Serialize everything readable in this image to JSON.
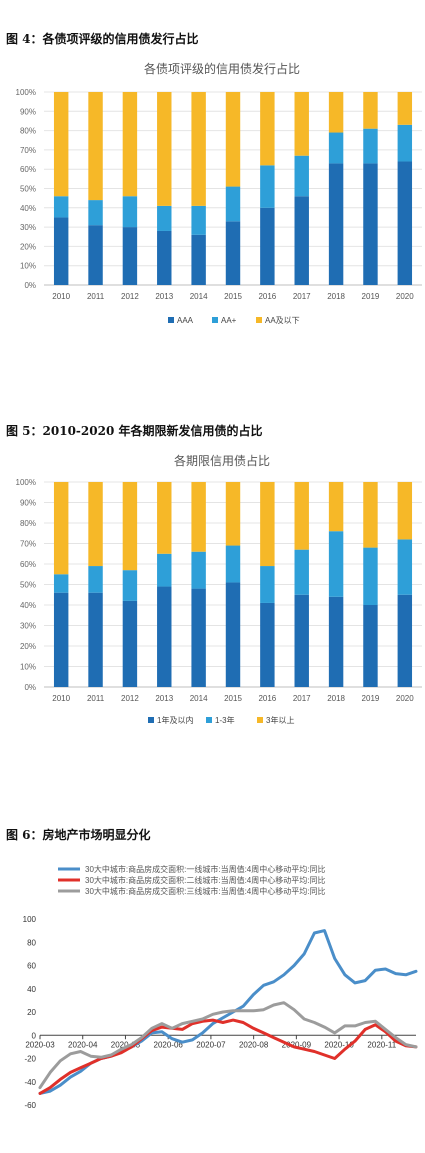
{
  "figures": [
    {
      "caption": "图 4：各债项评级的信用债发行占比"
    },
    {
      "caption": "图 5：2010-2020 年各期限新发信用债的占比"
    },
    {
      "caption": "图 6：房地产市场明显分化"
    }
  ],
  "chart_data": [
    {
      "type": "bar",
      "stacked": true,
      "title": "各债项评级的信用债发行占比",
      "categories": [
        "2010",
        "2011",
        "2012",
        "2013",
        "2014",
        "2015",
        "2016",
        "2017",
        "2018",
        "2019",
        "2020"
      ],
      "y_ticks": [
        "0%",
        "10%",
        "20%",
        "30%",
        "40%",
        "50%",
        "60%",
        "70%",
        "80%",
        "90%",
        "100%"
      ],
      "ylim": [
        0,
        100
      ],
      "legend_position": "bottom",
      "series": [
        {
          "name": "AAA",
          "color": "#1f6db3",
          "values": [
            35,
            31,
            30,
            28,
            26,
            33,
            40,
            46,
            63,
            63,
            64
          ]
        },
        {
          "name": "AA+",
          "color": "#2e9fd8",
          "values": [
            11,
            13,
            16,
            13,
            15,
            18,
            22,
            21,
            16,
            18,
            19
          ]
        },
        {
          "name": "AA及以下",
          "color": "#f6b828",
          "values": [
            54,
            56,
            54,
            59,
            59,
            49,
            38,
            33,
            21,
            19,
            17
          ]
        }
      ]
    },
    {
      "type": "bar",
      "stacked": true,
      "title": "各期限信用债占比",
      "categories": [
        "2010",
        "2011",
        "2012",
        "2013",
        "2014",
        "2015",
        "2016",
        "2017",
        "2018",
        "2019",
        "2020"
      ],
      "y_ticks": [
        "0%",
        "10%",
        "20%",
        "30%",
        "40%",
        "50%",
        "60%",
        "70%",
        "80%",
        "90%",
        "100%"
      ],
      "ylim": [
        0,
        100
      ],
      "legend_position": "bottom",
      "series": [
        {
          "name": "1年及以内",
          "color": "#1f6db3",
          "values": [
            46,
            46,
            42,
            49,
            48,
            51,
            41,
            45,
            44,
            40,
            45
          ]
        },
        {
          "name": "1-3年",
          "color": "#2e9fd8",
          "values": [
            9,
            13,
            15,
            16,
            18,
            18,
            18,
            22,
            32,
            28,
            27
          ]
        },
        {
          "name": "3年以上",
          "color": "#f6b828",
          "values": [
            45,
            41,
            43,
            35,
            34,
            31,
            41,
            33,
            24,
            32,
            28
          ]
        }
      ]
    },
    {
      "type": "line",
      "title": "",
      "x_ticks": [
        "2020-03",
        "2020-04",
        "2020-05",
        "2020-06",
        "2020-07",
        "2020-08",
        "2020-09",
        "2020-10",
        "2020-11"
      ],
      "y_ticks": [
        "-60",
        "-40",
        "-20",
        "0",
        "20",
        "40",
        "60",
        "80",
        "100"
      ],
      "ylim": [
        -60,
        100
      ],
      "legend_position": "top",
      "series": [
        {
          "name": "30大中城市:商品房成交面积:一线城市:当周值:4周中心移动平均:同比",
          "color": "#4a8ec9",
          "values": [
            -50,
            -48,
            -43,
            -36,
            -31,
            -24,
            -20,
            -18,
            -14,
            -10,
            -5,
            2,
            3,
            -3,
            -6,
            -4,
            2,
            10,
            15,
            20,
            25,
            35,
            43,
            46,
            52,
            60,
            70,
            88,
            90,
            66,
            52,
            45,
            47,
            56,
            57,
            53,
            52,
            55
          ]
        },
        {
          "name": "30大中城市:商品房成交面积:二线城市:当周值:4周中心移动平均:同比",
          "color": "#e0302a",
          "values": [
            -50,
            -45,
            -38,
            -32,
            -28,
            -24,
            -20,
            -18,
            -15,
            -10,
            -3,
            4,
            7,
            6,
            5,
            10,
            12,
            13,
            11,
            13,
            11,
            6,
            2,
            -2,
            -6,
            -10,
            -12,
            -14,
            -17,
            -20,
            -12,
            -5,
            5,
            9,
            3,
            -5,
            -9,
            -10
          ]
        },
        {
          "name": "30大中城市:商品房成交面积:三线城市:当周值:4周中心移动平均:同比",
          "color": "#9c9c9c",
          "values": [
            -45,
            -32,
            -22,
            -16,
            -14,
            -18,
            -19,
            -17,
            -12,
            -8,
            -2,
            6,
            10,
            6,
            10,
            12,
            14,
            18,
            20,
            21,
            21,
            21,
            22,
            26,
            28,
            22,
            14,
            11,
            7,
            2,
            8,
            8,
            11,
            12,
            5,
            -2,
            -8,
            -10
          ]
        }
      ]
    }
  ]
}
